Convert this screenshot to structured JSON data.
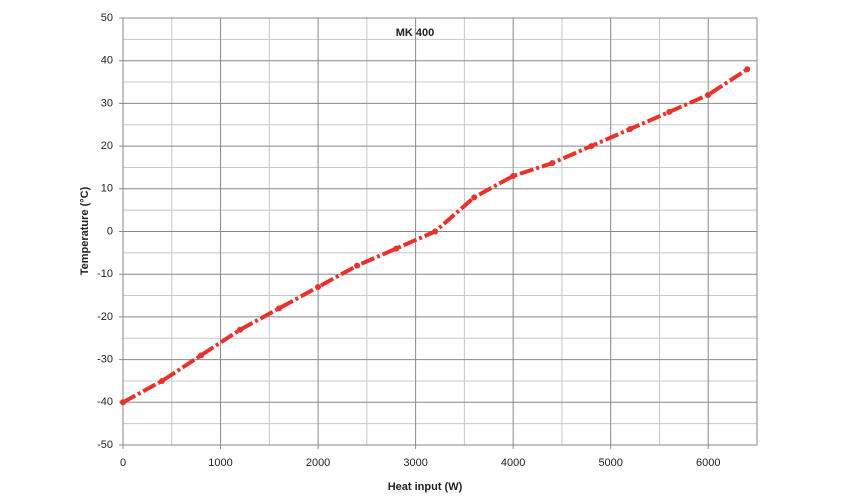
{
  "chart_data": {
    "type": "line",
    "title": "MK 400",
    "x_label": "Heat input (W)",
    "y_label": "Temperature (°C)",
    "x": [
      0,
      400,
      800,
      1200,
      1600,
      2000,
      2400,
      2800,
      3200,
      3600,
      4000,
      4400,
      4800,
      5200,
      5600,
      6000,
      6400
    ],
    "series": [
      {
        "name": "MK 400",
        "color": "#e8322c",
        "values": [
          -40,
          -35,
          -29,
          -23,
          -18,
          -13,
          -8,
          -4,
          0,
          8,
          13,
          16,
          20,
          24,
          28,
          32,
          38
        ]
      }
    ],
    "xlim": [
      0,
      6500
    ],
    "xticks": [
      0,
      1000,
      2000,
      3000,
      4000,
      5000,
      6000
    ],
    "xminorticks": [
      500,
      1500,
      2500,
      3500,
      4500,
      5500,
      6500
    ],
    "ylim": [
      -50,
      50
    ],
    "yticks": [
      -50,
      -40,
      -30,
      -20,
      -10,
      0,
      10,
      20,
      30,
      40,
      50
    ],
    "yminorticks": [
      -45,
      -35,
      -25,
      -15,
      -5,
      5,
      15,
      25,
      35,
      45
    ],
    "grid": true
  }
}
